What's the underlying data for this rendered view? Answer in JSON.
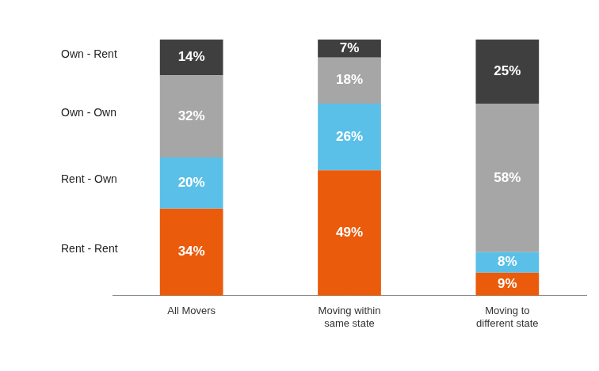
{
  "chart_data": {
    "type": "bar",
    "categories": [
      "All Movers",
      "Moving within same state",
      "Moving to different state"
    ],
    "series": [
      {
        "name": "Rent - Rent",
        "color": "#ea5b0c",
        "values": [
          34,
          49,
          9
        ],
        "value_labels": [
          "34%",
          "49%",
          "9%"
        ]
      },
      {
        "name": "Rent - Own",
        "color": "#5bc0e8",
        "values": [
          20,
          26,
          8
        ],
        "value_labels": [
          "20%",
          "26%",
          "8%"
        ]
      },
      {
        "name": "Own - Own",
        "color": "#a6a6a6",
        "values": [
          32,
          18,
          58
        ],
        "value_labels": [
          "32%",
          "18%",
          "58%"
        ]
      },
      {
        "name": "Own - Rent",
        "color": "#3f3f3f",
        "values": [
          14,
          7,
          25
        ],
        "value_labels": [
          "14%",
          "7%",
          "25%"
        ]
      }
    ],
    "stacked": true,
    "data_labels": true,
    "tick_labels": "x",
    "grid": false,
    "legend": "left",
    "ylim": [
      0,
      100
    ]
  }
}
